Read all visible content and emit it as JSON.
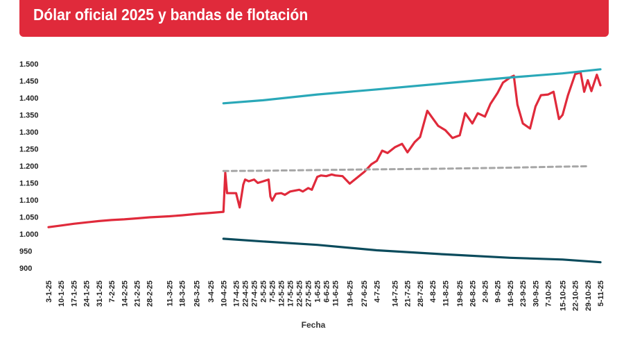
{
  "header": {
    "title": "Dólar oficial 2025 y bandas de flotación"
  },
  "chart_data": {
    "type": "line",
    "xlabel": "Fecha",
    "ylabel": "",
    "ylim": [
      900,
      1500
    ],
    "y_ticks": [
      "1.500",
      "1.450",
      "1.400",
      "1.350",
      "1.300",
      "1.250",
      "1.200",
      "1.150",
      "1.100",
      "1.050",
      "1.000",
      "950",
      "900"
    ],
    "y_tick_values": [
      1500,
      1450,
      1400,
      1350,
      1300,
      1250,
      1200,
      1150,
      1100,
      1050,
      1000,
      950,
      900
    ],
    "x_tick_labels": [
      "3-1-25",
      "10-1-25",
      "17-1-25",
      "24-1-25",
      "31-1-25",
      "7-2-25",
      "14-2-25",
      "21-2-25",
      "28-2-25",
      "11-3-25",
      "18-3-25",
      "26-3-25",
      "3-4-25",
      "10-4-25",
      "17-4-25",
      "22-4-25",
      "27-4-25",
      "2-5-25",
      "7-5-25",
      "12-5-25",
      "17-5-25",
      "22-5-25",
      "27-5-25",
      "1-6-25",
      "6-6-25",
      "11-6-25",
      "19-6-25",
      "27-6-25",
      "4-7-25",
      "14-7-25",
      "21-7-25",
      "28-7-25",
      "4-8-25",
      "11-8-25",
      "19-8-25",
      "26-8-25",
      "2-9-25",
      "9-9-25",
      "16-9-25",
      "23-9-25",
      "30-9-25",
      "7-10-25",
      "15-10-25",
      "22-10-25",
      "29-10-25",
      "5-11-25"
    ],
    "grid": false,
    "legend": "none",
    "series": [
      {
        "color": "#e02a3b",
        "style": "solid",
        "points": [
          [
            "3-1-25",
            1020
          ],
          [
            "10-1-25",
            1025
          ],
          [
            "17-1-25",
            1030
          ],
          [
            "24-1-25",
            1034
          ],
          [
            "31-1-25",
            1038
          ],
          [
            "7-2-25",
            1041
          ],
          [
            "14-2-25",
            1043
          ],
          [
            "21-2-25",
            1046
          ],
          [
            "28-2-25",
            1049
          ],
          [
            "11-3-25",
            1052
          ],
          [
            "18-3-25",
            1055
          ],
          [
            "26-3-25",
            1059
          ],
          [
            "3-4-25",
            1062
          ],
          [
            "10-4-25",
            1065
          ],
          [
            "11-4-25",
            1180
          ],
          [
            "12-4-25",
            1120
          ],
          [
            "17-4-25",
            1120
          ],
          [
            "19-4-25",
            1078
          ],
          [
            "21-4-25",
            1145
          ],
          [
            "22-4-25",
            1160
          ],
          [
            "24-4-25",
            1155
          ],
          [
            "27-4-25",
            1160
          ],
          [
            "29-4-25",
            1150
          ],
          [
            "2-5-25",
            1155
          ],
          [
            "5-5-25",
            1160
          ],
          [
            "6-5-25",
            1110
          ],
          [
            "7-5-25",
            1098
          ],
          [
            "9-5-25",
            1118
          ],
          [
            "12-5-25",
            1120
          ],
          [
            "14-5-25",
            1115
          ],
          [
            "17-5-25",
            1125
          ],
          [
            "20-5-25",
            1128
          ],
          [
            "22-5-25",
            1130
          ],
          [
            "24-5-25",
            1125
          ],
          [
            "27-5-25",
            1135
          ],
          [
            "29-5-25",
            1130
          ],
          [
            "1-6-25",
            1168
          ],
          [
            "3-6-25",
            1172
          ],
          [
            "6-6-25",
            1170
          ],
          [
            "9-6-25",
            1175
          ],
          [
            "11-6-25",
            1172
          ],
          [
            "15-6-25",
            1170
          ],
          [
            "19-6-25",
            1148
          ],
          [
            "23-6-25",
            1165
          ],
          [
            "27-6-25",
            1182
          ],
          [
            "1-7-25",
            1205
          ],
          [
            "4-7-25",
            1215
          ],
          [
            "7-7-25",
            1245
          ],
          [
            "10-7-25",
            1238
          ],
          [
            "14-7-25",
            1255
          ],
          [
            "18-7-25",
            1265
          ],
          [
            "21-7-25",
            1240
          ],
          [
            "25-7-25",
            1270
          ],
          [
            "28-7-25",
            1285
          ],
          [
            "1-8-25",
            1362
          ],
          [
            "4-8-25",
            1340
          ],
          [
            "7-8-25",
            1318
          ],
          [
            "11-8-25",
            1305
          ],
          [
            "15-8-25",
            1282
          ],
          [
            "19-8-25",
            1290
          ],
          [
            "22-8-25",
            1355
          ],
          [
            "26-8-25",
            1325
          ],
          [
            "29-8-25",
            1355
          ],
          [
            "2-9-25",
            1345
          ],
          [
            "5-9-25",
            1382
          ],
          [
            "9-9-25",
            1415
          ],
          [
            "12-9-25",
            1445
          ],
          [
            "16-9-25",
            1460
          ],
          [
            "18-9-25",
            1465
          ],
          [
            "20-9-25",
            1380
          ],
          [
            "23-9-25",
            1325
          ],
          [
            "27-9-25",
            1310
          ],
          [
            "30-9-25",
            1375
          ],
          [
            "3-10-25",
            1408
          ],
          [
            "7-10-25",
            1410
          ],
          [
            "10-10-25",
            1418
          ],
          [
            "13-10-25",
            1338
          ],
          [
            "15-10-25",
            1350
          ],
          [
            "18-10-25",
            1408
          ],
          [
            "22-10-25",
            1470
          ],
          [
            "25-10-25",
            1475
          ],
          [
            "27-10-25",
            1418
          ],
          [
            "29-10-25",
            1452
          ],
          [
            "31-10-25",
            1420
          ],
          [
            "3-11-25",
            1468
          ],
          [
            "5-11-25",
            1437
          ]
        ]
      },
      {
        "color": "#2aa8b8",
        "style": "solid",
        "points": [
          [
            "10-4-25",
            1384
          ],
          [
            "2-5-25",
            1393
          ],
          [
            "1-6-25",
            1410
          ],
          [
            "4-7-25",
            1425
          ],
          [
            "11-8-25",
            1443
          ],
          [
            "16-9-25",
            1460
          ],
          [
            "15-10-25",
            1472
          ],
          [
            "5-11-25",
            1484
          ]
        ]
      },
      {
        "color": "#a6a6a6",
        "style": "dashed",
        "points": [
          [
            "10-4-25",
            1185
          ],
          [
            "2-5-25",
            1186
          ],
          [
            "1-6-25",
            1188
          ],
          [
            "4-7-25",
            1190
          ],
          [
            "11-8-25",
            1192
          ],
          [
            "16-9-25",
            1195
          ],
          [
            "15-10-25",
            1198
          ],
          [
            "29-10-25",
            1199
          ]
        ]
      },
      {
        "color": "#0b4b5c",
        "style": "solid",
        "points": [
          [
            "10-4-25",
            986
          ],
          [
            "2-5-25",
            978
          ],
          [
            "1-6-25",
            968
          ],
          [
            "4-7-25",
            952
          ],
          [
            "11-8-25",
            940
          ],
          [
            "16-9-25",
            930
          ],
          [
            "15-10-25",
            925
          ],
          [
            "5-11-25",
            917
          ]
        ]
      }
    ]
  }
}
